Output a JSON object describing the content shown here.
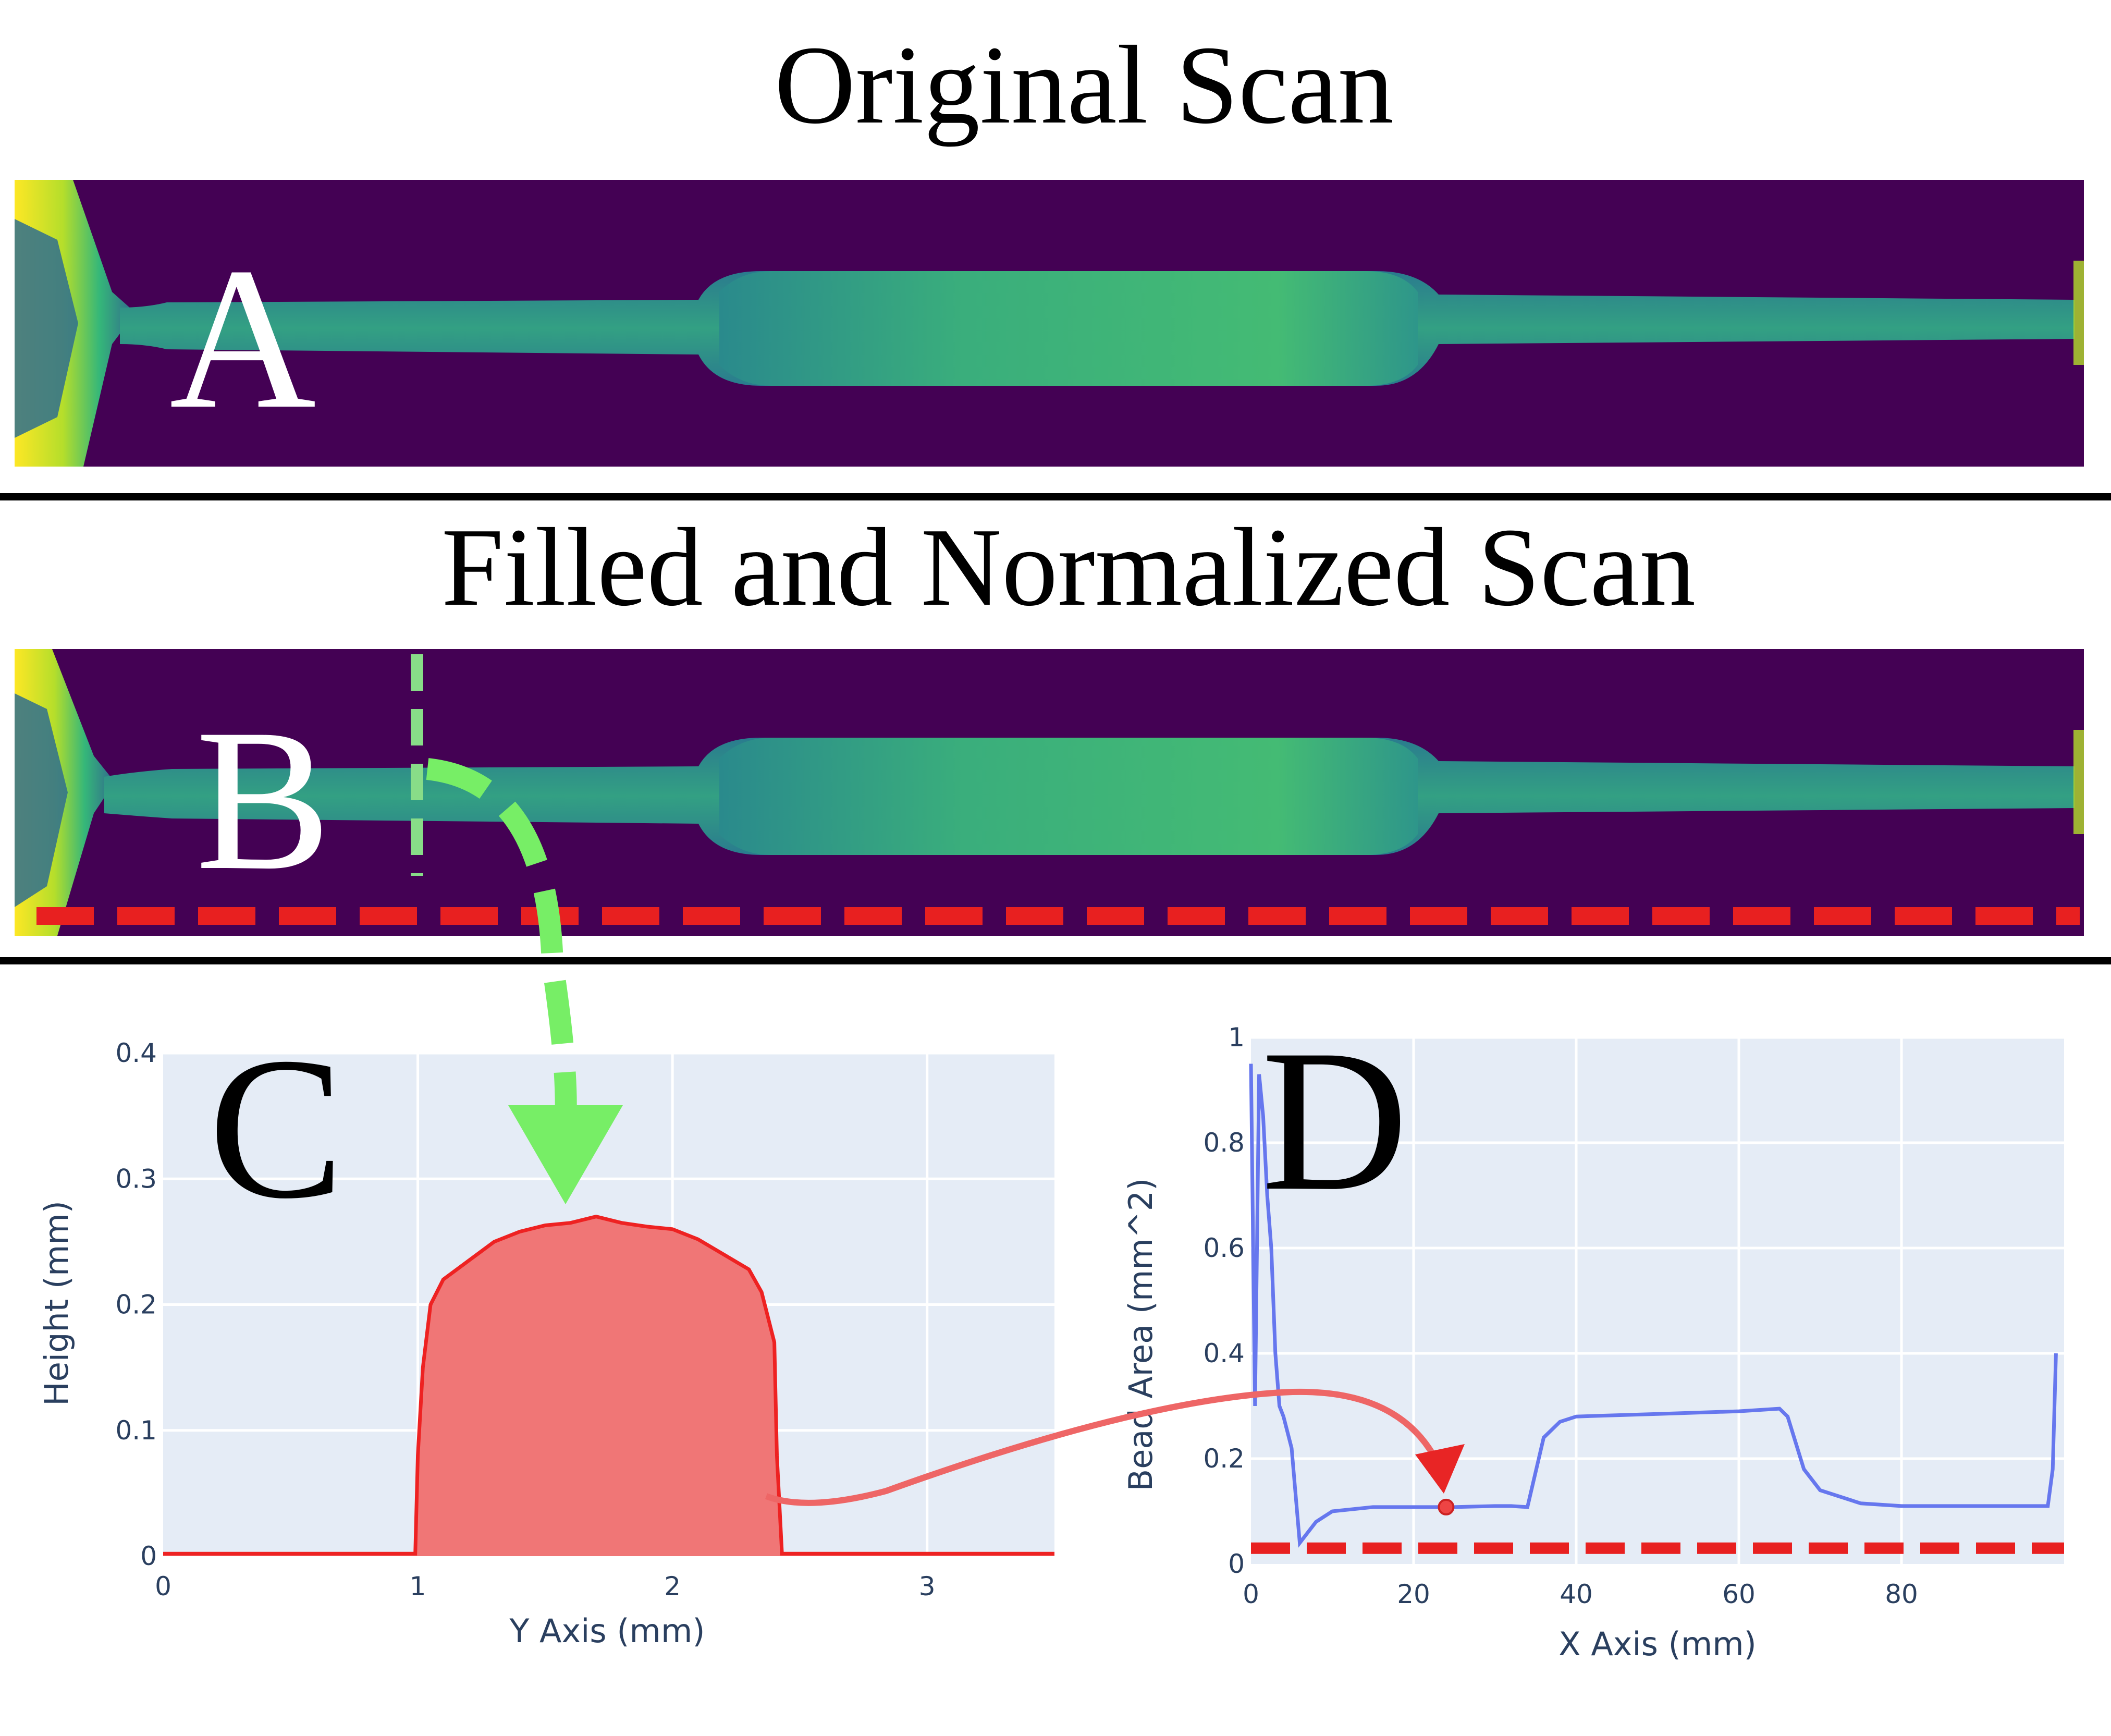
{
  "panel_a": {
    "title": "Original Scan",
    "label": "A"
  },
  "panel_b": {
    "title": "Filled and Normalized Scan",
    "label": "B"
  },
  "panel_c": {
    "label": "C"
  },
  "panel_d": {
    "label": "D"
  },
  "colors": {
    "background_scan": "#440154",
    "bead_mid": "#25858e",
    "bead_high": "#3fbc73",
    "edge_yellow": "#fde725",
    "profile_red": "#ee2222",
    "profile_fill": "#f07676",
    "area_blue": "#6677ee",
    "green_arrow": "#77ee66",
    "plot_bg": "#e5ecf6"
  },
  "chart_data": [
    {
      "type": "area",
      "xlabel": "Y Axis (mm)",
      "ylabel": "Height (mm)",
      "xlim": [
        0,
        3.5
      ],
      "ylim": [
        0,
        0.4
      ],
      "xticks": [
        "0",
        "1",
        "2",
        "3"
      ],
      "yticks": [
        "0",
        "0.1",
        "0.2",
        "0.3",
        "0.4"
      ],
      "grid": true,
      "x": [
        0,
        0.99,
        1.0,
        1.02,
        1.05,
        1.1,
        1.2,
        1.3,
        1.4,
        1.5,
        1.6,
        1.7,
        1.8,
        1.9,
        2.0,
        2.1,
        2.2,
        2.3,
        2.35,
        2.4,
        2.41,
        2.43,
        3.5
      ],
      "values": [
        0.002,
        0.002,
        0.08,
        0.15,
        0.2,
        0.22,
        0.235,
        0.25,
        0.258,
        0.263,
        0.265,
        0.27,
        0.265,
        0.262,
        0.26,
        0.252,
        0.24,
        0.228,
        0.21,
        0.17,
        0.08,
        0.002,
        0.002
      ]
    },
    {
      "type": "line",
      "xlabel": "X Axis (mm)",
      "ylabel": "Bead Area (mm^2)",
      "xlim": [
        0,
        100
      ],
      "ylim": [
        0,
        1
      ],
      "xticks": [
        "0",
        "20",
        "40",
        "60",
        "80"
      ],
      "yticks": [
        "0",
        "0.2",
        "0.4",
        "0.6",
        "0.8",
        "1"
      ],
      "grid": true,
      "x": [
        0,
        0.5,
        1,
        1.5,
        2,
        2.5,
        3,
        3.5,
        4,
        5,
        6,
        7,
        8,
        10,
        15,
        20,
        25,
        30,
        32,
        34,
        36,
        38,
        40,
        50,
        60,
        65,
        66,
        68,
        70,
        75,
        80,
        90,
        98,
        98.6,
        99
      ],
      "values": [
        0.95,
        0.3,
        0.93,
        0.85,
        0.7,
        0.6,
        0.4,
        0.3,
        0.28,
        0.22,
        0.04,
        0.06,
        0.08,
        0.1,
        0.108,
        0.108,
        0.108,
        0.11,
        0.11,
        0.108,
        0.24,
        0.27,
        0.28,
        0.285,
        0.29,
        0.295,
        0.28,
        0.18,
        0.14,
        0.115,
        0.11,
        0.11,
        0.11,
        0.18,
        0.4
      ],
      "highlight_point": {
        "x": 24,
        "y": 0.108
      },
      "baseline": 0.03
    }
  ]
}
